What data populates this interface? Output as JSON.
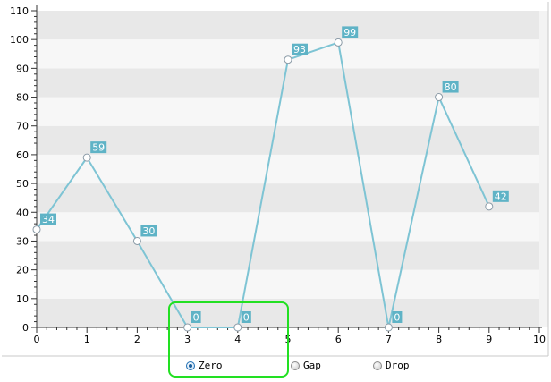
{
  "chart_data": {
    "type": "line",
    "x": [
      0,
      1,
      2,
      3,
      4,
      5,
      6,
      7,
      8,
      9
    ],
    "series": [
      {
        "values": [
          34,
          59,
          30,
          0,
          0,
          93,
          99,
          0,
          80,
          42
        ]
      }
    ],
    "xlim": [
      0,
      10
    ],
    "ylim": [
      0,
      110
    ],
    "xticks": [
      "0",
      "1",
      "2",
      "3",
      "4",
      "5",
      "6",
      "7",
      "8",
      "9",
      "10"
    ],
    "yticks": [
      "0",
      "10",
      "20",
      "30",
      "40",
      "50",
      "60",
      "70",
      "80",
      "90",
      "100",
      "110"
    ],
    "data_labels": [
      "34",
      "59",
      "30",
      "0",
      "0",
      "93",
      "99",
      "0",
      "80",
      "42"
    ],
    "grid": "horizontal alternating bands",
    "colors": {
      "line": "#7ec4d4",
      "label_bg": "#5fb3c6",
      "band_dark": "#e8e8e8",
      "band_light": "#f7f7f7",
      "axis": "#333333"
    }
  },
  "empty_point_options": {
    "options": [
      {
        "label": "Zero",
        "checked": true
      },
      {
        "label": "Gap",
        "checked": false
      },
      {
        "label": "Drop",
        "checked": false
      }
    ]
  },
  "highlight_color": "#22e022"
}
